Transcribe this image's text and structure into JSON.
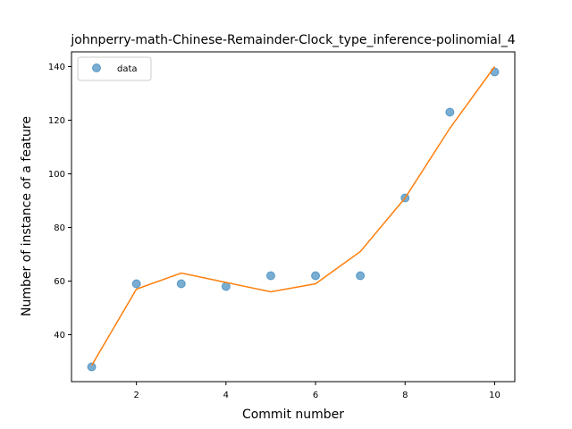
{
  "chart_data": {
    "type": "scatter",
    "title": "johnperry-math-Chinese-Remainder-Clock_type_inference-polinomial_4",
    "xlabel": "Commit number",
    "ylabel": "Number of instance of a feature",
    "xlim": [
      0.55,
      10.45
    ],
    "ylim": [
      22.5,
      145.5
    ],
    "xticks": [
      2,
      4,
      6,
      8,
      10
    ],
    "yticks": [
      40,
      60,
      80,
      100,
      120,
      140
    ],
    "grid": false,
    "legend_position": "top-left",
    "series": [
      {
        "name": "data",
        "kind": "scatter",
        "color": "#1f77b4",
        "x": [
          1,
          2,
          3,
          4,
          5,
          6,
          7,
          8,
          9,
          10
        ],
        "y": [
          28,
          59,
          59,
          58,
          62,
          62,
          62,
          91,
          123,
          138
        ]
      },
      {
        "kind": "line",
        "color": "#ff7f0e",
        "x": [
          1,
          2,
          3,
          4,
          5,
          6,
          7,
          8,
          9,
          10
        ],
        "y": [
          28.5,
          57,
          63,
          59.5,
          56,
          59,
          71,
          91,
          117,
          140
        ]
      }
    ]
  }
}
